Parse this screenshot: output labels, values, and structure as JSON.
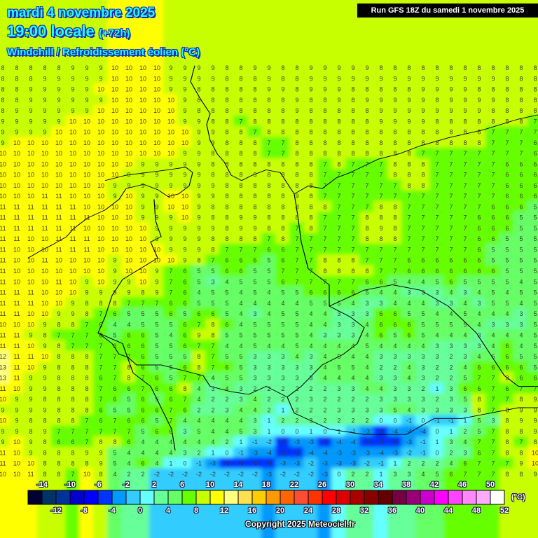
{
  "header": {
    "date": "mardi 4 novembre 2025",
    "time": "19:00 locale",
    "lead": "(+72h)",
    "parameter": "Windchill / Refroidissement éolien (°C)"
  },
  "run_label": "Run GFS 18Z du samedi 1 novembre 2025",
  "copyright": "Copyright 2025 Meteociel.fr",
  "colorbar": {
    "unit": "(°C)",
    "labels_top": [
      "-14",
      "-10",
      "-6",
      "-2",
      "2",
      "6",
      "10",
      "14",
      "18",
      "22",
      "26",
      "30",
      "34",
      "38",
      "42",
      "46",
      "50"
    ],
    "labels_bottom": [
      "-12",
      "-8",
      "-4",
      "0",
      "4",
      "8",
      "12",
      "16",
      "20",
      "24",
      "28",
      "32",
      "36",
      "40",
      "44",
      "48",
      "52"
    ],
    "colors": [
      "#000033",
      "#003366",
      "#003399",
      "#0000cc",
      "#0000ff",
      "#0033ff",
      "#0099ff",
      "#33ccff",
      "#66ffff",
      "#66ff99",
      "#66ff66",
      "#66ff00",
      "#c8ff00",
      "#ffff00",
      "#ffff80",
      "#ffe050",
      "#ffcc00",
      "#ff9900",
      "#ff6600",
      "#ff4d33",
      "#ff3300",
      "#ff0000",
      "#dd0000",
      "#aa0000",
      "#880000",
      "#660000",
      "#770044",
      "#990077",
      "#cc00cc",
      "#ff00ff",
      "#ff44ff",
      "#ff88ff",
      "#ffaaff",
      "#ffffff"
    ]
  },
  "map": {
    "border_color": "#000000",
    "value_color": "#3a3a2a",
    "grid_values": [
      "8 8 8 8 8 9 9 9 10 10 10 10 9 9 9 9 8 8 9 9 8 8 9 9 9 9 9 8 8 8 8 8 8 8 8 8 8 8 8",
      "8 8 8 9 9 9 9 9 10 10 10 10 9 9 9 9 8 8 8 9 8 8 9 9 9 9 9 9 9 9 9 9 9 9 9 9 8 8 8",
      "8 8 9 9 9 9 9 10 10 10 10 10 9 9 8 8 8 8 8 9 9 8 9 9 9 8 8 8 8 8 9 9 9 9 8 8 8 8 8",
      "8 8 9 9 9 9 9 9 10 10 10 10 10 9 8 8 8 8 8 8 8 9 8 8 9 8 9 9 9 9 9 8 9 9 9 9 8 8 8",
      "8 9 9 9 9 9 9 10 10 10 10 10 10 9 8 8 8 8 8 8 8 9 8 8 8 8 8 9 9 9 9 9 9 9 9 8 8 8 8",
      "9 9 9 9 9 10 10 10 10 10 10 10 10 9 9 8 8 7 8 8 8 8 8 8 8 8 8 9 9 9 9 8 8 8 8 8 8 8 7",
      "9 9 9 9 10 10 10 10 10 10 10 10 10 10 9 9 8 8 7 8 8 8 8 8 8 8 8 8 8 8 8 8 8 8 8 7 7 7 7",
      "9 10 10 10 10 10 10 10 10 10 10 10 10 10 9 9 8 8 8 7 7 8 8 8 8 8 8 8 8 8 8 8 8 8 8 7 7 7 6",
      "10 10 10 10 10 10 10 10 10 10 10 10 10 9 9 8 8 8 8 7 7 8 8 8 8 8 8 8 8 8 7 7 7 7 7 7 7 7 6",
      "10 10 10 10 10 10 10 10 10 10 9 9 9 9 9 8 8 8 8 8 8 8 8 7 8 7 7 7 8 8 8 7 7 7 7 7 6 6 6",
      "10 10 10 10 10 10 10 10 10 9 9 9 9 9 9 8 8 8 8 8 8 8 8 7 7 7 7 7 8 8 8 7 7 7 7 7 6 6 6",
      "10 10 10 10 10 10 10 10 9 9 9 9 9 9 9 9 8 8 8 8 8 8 8 7 7 7 7 7 7 8 8 7 7 7 7 7 6 6 6",
      "10 10 10 11 11 10 10 10 9 10 9 9 10 10 9 9 8 8 8 8 8 9 8 7 7 7 7 7 7 7 7 7 7 7 7 7 6 6 6",
      "11 11 11 11 11 11 10 10 10 10 9 9 10 10 9 8 8 8 8 8 8 8 8 8 7 7 7 8 8 7 7 7 7 7 7 6 6 6 5",
      "11 11 11 11 11 11 11 10 10 10 9 9 9 10 9 8 8 9 9 8 8 8 8 7 7 7 8 8 8 7 7 7 7 7 6 6 6 5 5",
      "11 11 11 11 11 11 10 10 10 10 10 9 9 9 9 9 8 9 9 8 8 7 8 7 7 7 8 9 8 7 7 7 7 7 6 6 6 5 5",
      "11 11 10 10 11 11 11 10 10 10 10 9 9 9 9 8 8 8 8 7 8 7 7 7 7 7 8 8 8 7 7 7 7 7 6 6 5 5 5",
      "11 10 10 10 11 11 11 10 10 10 10 10 9 9 9 8 7 7 7 6 6 7 7 7 7 7 7 7 7 7 7 7 7 7 6 5 5 5 5",
      "11 10 10 11 10 10 10 10 9 10 10 10 10 9 8 7 6 6 6 5 6 7 7 8 8 8 7 7 7 6 6 6 6 6 6 5 5 5 5",
      "11 10 10 10 10 10 10 10 9 10 10 9 7 6 5 5 6 6 5 5 7 7 7 8 8 8 8 7 7 6 6 6 6 6 6 6 5 5 5",
      "11 10 10 10 11 10 9 10 9 9 10 9 7 6 5 3 4 5 5 5 6 7 7 7 7 7 6 6 5 4 4 5 6 5 5 5 5 4 5",
      "11 11 11 10 10 10 9 9 9 9 8 9 7 6 4 5 5 4 5 4 5 5 6 6 6 6 5 4 4 3 3 3 4 3 4 5 4 5 5",
      "11 11 11 10 10 9 8 8 8 7 7 7 6 6 5 5 5 4 4 4 4 4 5 5 5 4 3 3 4 4 4 3 3 4 3 5 5 4 5",
      "11 11 10 10 9 9 8 7 6 5 5 5 6 5 6 6 5 4 3 4 5 5 4 4 3 3 3 6 6 5 5 4 4 5 4 4 4 3 5",
      "10 10 10 9 8 8 7 6 4 4 5 5 5 6 7 8 6 4 5 5 5 5 4 4 3 3 4 6 6 6 5 5 5 5 4 3 3 3 5",
      "11 11 9 8 7 7 7 6 5 6 6 5 4 6 9 8 5 5 5 5 5 5 4 3 3 3 4 6 5 6 5 4 4 4 3 4 4 4 5",
      "11 11 10 9 8 7 7 7 6 6 6 5 5 6 7 7 4 4 5 4 4 5 4 4 4 4 5 4 4 4 4 3 3 3 3 4 6 4 5",
      "12 11 11 10 8 8 8 7 7 7 6 5 5 5 8 7 5 5 3 3 3 4 3 4 5 4 4 3 3 3 3 3 2 3 4 5 6 5 5",
      "13 11 10 9 8 8 8 7 7 8 6 5 5 6 8 7 6 5 3 3 3 3 3 4 5 5 4 2 2 4 3 2 2 4 6 6 6 6 5",
      "13 11 9 9 8 8 8 6 7 8 7 6 5 7 7 4 5 5 3 3 3 3 3 4 4 4 4 3 3 4 3 2 2 5 7 7 8 6 6",
      "11 10 9 9 8 8 8 7 6 6 7 6 6 8 4 3 4 3 2 2 2 2 2 2 3 3 4 4 3 3 2 1 3 6 6 7 6 7 7",
      "10 9 9 8 8 8 8 7 6 5 6 5 6 7 4 2 2 3 4 2 2 2 3 2 2 2 2 3 3 3 3 2 3 5 8 7 7 8 9",
      "9 9 9 9 8 8 8 6 5 5 6 6 7 6 2 2 3 4 4 2 1 2 2 2 3 3 3 3 5 4 3 3 3 3 8 7 8 9 9",
      "10 9 8 8 8 8 7 6 7 6 6 5 7 4 4 4 4 4 3 1 2 2 3 2 2 2 2 0 0 -1 0 -1 -1 1 5 3 8 9 9",
      "9 9 8 9 7 7 7 7 7 7 5 6 6 3 5 4 4 5 3 1 0 0 1 0 1 -1 -3 -5 -4 -4 -4 0 1 2 5 7 8 8 9",
      "9 10 9 8 6 6 7 8 8 6 4 4 4 4 4 4 2 1 -1 -2 -5 -3 -3 -5 -4 -4 -5 -6 -6 -3 -1 1 3 4 7 7 8 7 8",
      "11 10 9 8 8 8 9 9 5 4 4 4 4 3 2 1 0 -1 -3 -4 -5 -5 -4 -4 -3 -3 -3 -4 -3 -2 -1 0 2 3 6 7 8 8 10",
      "11 10 10 8 8 8 8 9 5 4 6 4 1 0 -1 -3 -6 -5 -6 -6 -3 -3 -2 -3 -3 -3 -2 -1 1 2 2 2 4 6 7 7 7 9 10",
      "10 10 11 8 8 7 10 8 4 2 2 -2 -2 -2 -2 -2 -2 -2 -2 -3 -2 -2 -2 -3 0 2 2 1 3 3 4 5 6 7 7 7 8 8 9"
    ]
  }
}
